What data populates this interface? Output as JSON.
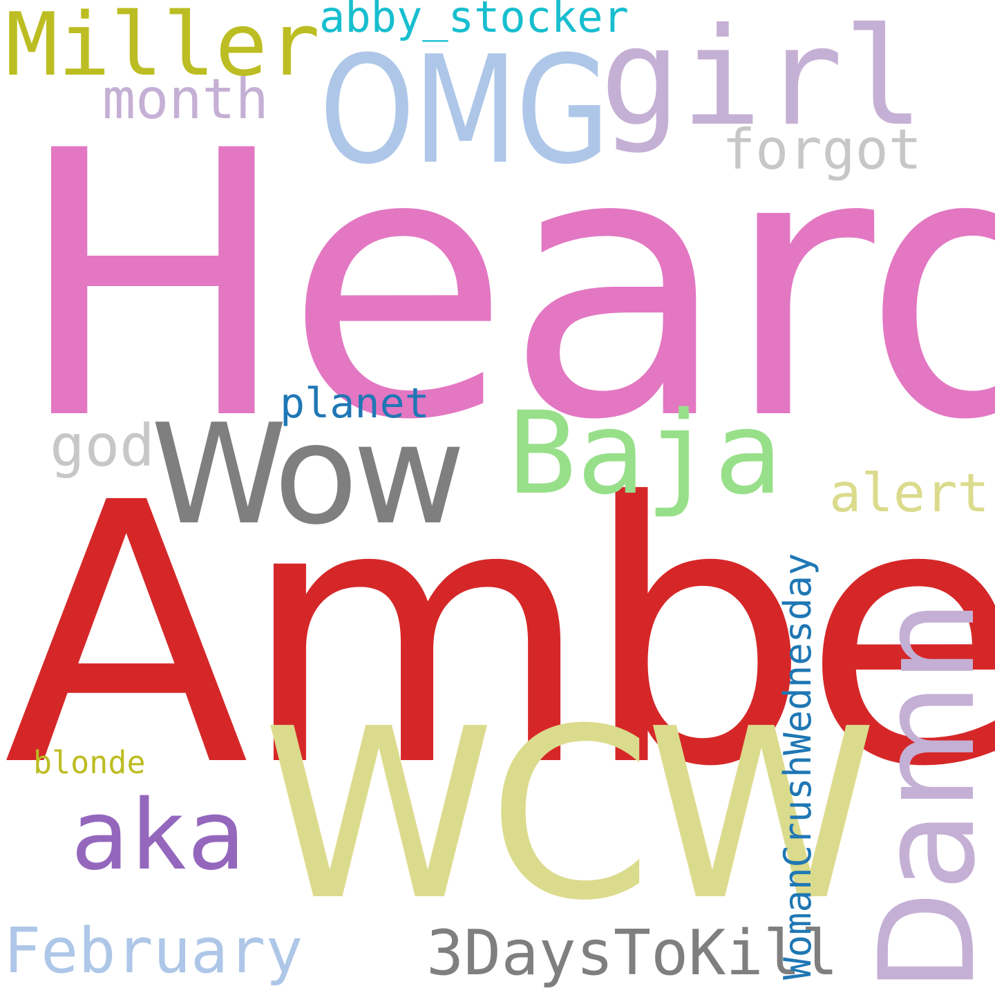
{
  "words": {
    "heard": {
      "text": "Heard",
      "color": "#e377c2"
    },
    "amber": {
      "text": "Amber",
      "color": "#d62728"
    },
    "wcw": {
      "text": "WCW",
      "color": "#dbdb8d"
    },
    "omg": {
      "text": "OMG",
      "color": "#aec7e8"
    },
    "girl": {
      "text": "girl",
      "color": "#c5b0d5"
    },
    "miller": {
      "text": "Miller",
      "color": "#bcbd22"
    },
    "abby": {
      "text": "abby_stocker",
      "color": "#17becf"
    },
    "month": {
      "text": "month",
      "color": "#c5b0d5"
    },
    "forgot": {
      "text": "forgot",
      "color": "#c7c7c7"
    },
    "planet": {
      "text": "planet",
      "color": "#1f77b4"
    },
    "god": {
      "text": "god",
      "color": "#c7c7c7"
    },
    "wow": {
      "text": "Wow",
      "color": "#7f7f7f"
    },
    "baja": {
      "text": "Baja",
      "color": "#98df8a"
    },
    "alert": {
      "text": "alert",
      "color": "#dbdb8d"
    },
    "blonde": {
      "text": "blonde",
      "color": "#bcbd22"
    },
    "aka": {
      "text": "aka",
      "color": "#9467bd"
    },
    "february": {
      "text": "February",
      "color": "#aec7e8"
    },
    "days": {
      "text": "3DaysToKill",
      "color": "#7f7f7f"
    },
    "wcwday": {
      "text": "WomanCrushWednesday",
      "color": "#1f77b4"
    },
    "damn": {
      "text": "Damn",
      "color": "#c5b0d5"
    }
  }
}
